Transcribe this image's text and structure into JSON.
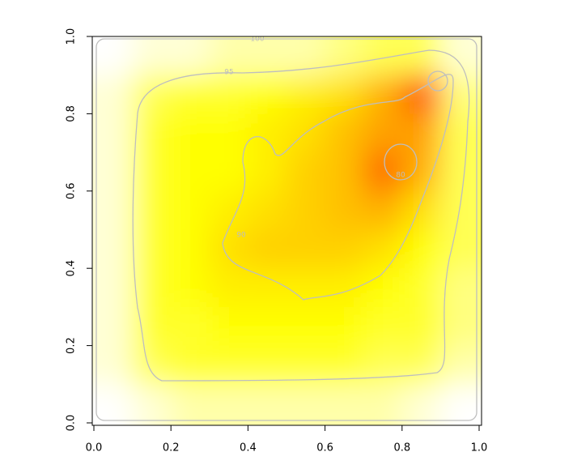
{
  "chart_data": {
    "type": "heatmap",
    "x": [
      0.05,
      0.15,
      0.25,
      0.35,
      0.45,
      0.55,
      0.65,
      0.75,
      0.85,
      0.95
    ],
    "y": [
      0.95,
      0.85,
      0.75,
      0.65,
      0.55,
      0.45,
      0.35,
      0.25,
      0.15,
      0.05
    ],
    "z": [
      [
        100,
        99,
        99,
        98,
        98,
        98,
        97,
        96,
        96,
        99
      ],
      [
        99,
        96,
        95,
        95,
        94,
        93,
        92,
        89,
        84,
        97
      ],
      [
        99,
        95,
        94,
        94,
        93,
        92,
        90,
        88,
        88,
        96
      ],
      [
        99,
        95,
        94,
        94,
        93,
        91,
        90,
        85,
        89,
        96
      ],
      [
        99,
        95,
        94,
        93,
        92,
        91,
        90,
        89,
        92,
        96
      ],
      [
        99,
        95,
        94,
        92,
        91,
        91,
        91,
        92,
        94,
        96
      ],
      [
        99,
        95,
        94,
        93,
        93,
        93,
        93,
        94,
        95,
        97
      ],
      [
        99,
        95,
        95,
        94,
        94,
        94,
        94,
        95,
        95,
        97
      ],
      [
        99,
        96,
        95,
        95,
        95,
        95,
        95,
        96,
        96,
        98
      ],
      [
        100,
        99,
        98,
        98,
        98,
        98,
        98,
        98,
        99,
        100
      ]
    ],
    "color_scale": [
      {
        "value": 80,
        "color": "#ff0000"
      },
      {
        "value": 86,
        "color": "#ff8000"
      },
      {
        "value": 90,
        "color": "#ffc000"
      },
      {
        "value": 94,
        "color": "#ffff00"
      },
      {
        "value": 97,
        "color": "#ffff80"
      },
      {
        "value": 100,
        "color": "#ffffff"
      }
    ],
    "contour_levels": [
      100,
      95,
      90,
      80
    ],
    "xlim": [
      0,
      1
    ],
    "ylim": [
      0,
      1
    ],
    "xticks": [
      {
        "value": 0,
        "label": "0.0"
      },
      0.2,
      0.4,
      0.6,
      0.8,
      {
        "value": 1,
        "label": "1.0"
      }
    ],
    "yticks": [
      {
        "value": 0,
        "label": "0.0"
      },
      0.2,
      0.4,
      0.6,
      0.8,
      {
        "value": 1,
        "label": "1.0"
      }
    ]
  }
}
